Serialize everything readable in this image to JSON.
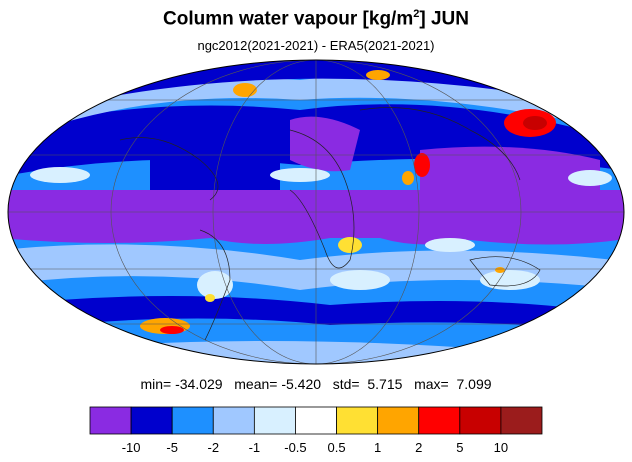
{
  "title": {
    "main": "Column water vapour [kg/m",
    "sup": "2",
    "suffix": "] JUN"
  },
  "subtitle": "ngc2012(2021-2021) - ERA5(2021-2021)",
  "stats": {
    "min_label": "min=",
    "min": "-34.029",
    "mean_label": "mean=",
    "mean": "-5.420",
    "std_label": "std=",
    "std": "5.715",
    "max_label": "max=",
    "max": "7.099"
  },
  "chart_data": {
    "type": "heatmap",
    "projection": "Mollweide",
    "title": "Column water vapour [kg/m2] JUN",
    "subtitle": "ngc2012(2021-2021) - ERA5(2021-2021)",
    "colorbar": {
      "levels": [
        "-10",
        "-5",
        "-2",
        "-1",
        "-0.5",
        "0.5",
        "1",
        "2",
        "5",
        "10"
      ],
      "colors": [
        "#8a2be2",
        "#0000cd",
        "#1e90ff",
        "#a0c8ff",
        "#d8f0ff",
        "#ffffff",
        "#ffe033",
        "#ffa500",
        "#ff0000",
        "#c80000",
        "#9b1c1c"
      ]
    },
    "statistics": {
      "min": -34.029,
      "mean": -5.42,
      "std": 5.715,
      "max": 7.099
    }
  }
}
